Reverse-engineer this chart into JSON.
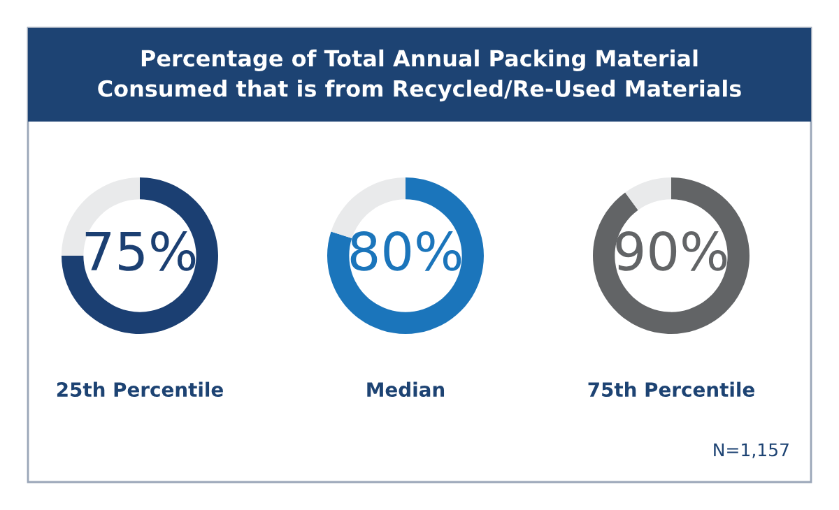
{
  "chart_data": [
    {
      "type": "donut",
      "title": "Percentage of Total Annual Packing Material\nConsumed that is from Recycled/Re-Used Materials",
      "xlabel": "25th Percentile",
      "categories": [
        null,
        null
      ],
      "values": [
        75,
        25
      ],
      "colors": [
        "#1b3f72",
        "#e9eaeb"
      ],
      "value_labels": [
        "75%",
        null
      ]
    },
    {
      "type": "donut",
      "xlabel": "Median",
      "categories": [
        null,
        null
      ],
      "values": [
        80,
        20
      ],
      "colors": [
        "#1b75bb",
        "#e9eaeb"
      ],
      "value_labels": [
        "80%",
        null
      ]
    },
    {
      "type": "donut",
      "xlabel": "75th Percentile",
      "categories": [
        null,
        null
      ],
      "values": [
        90,
        10
      ],
      "colors": [
        "#626466",
        "#e9eaeb"
      ],
      "value_labels": [
        "90%",
        null
      ],
      "annotations": [
        "N=1,157"
      ]
    }
  ]
}
